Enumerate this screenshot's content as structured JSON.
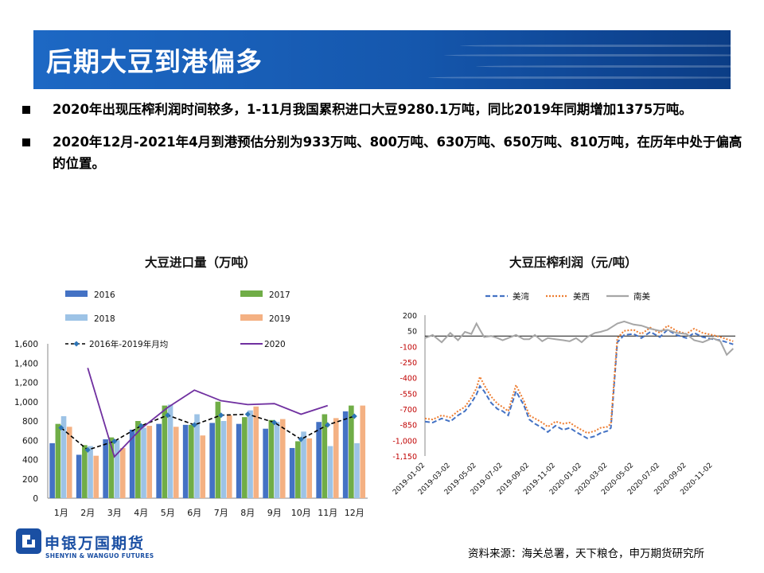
{
  "title": "后期大豆到港偏多",
  "bullets": [
    "2020年出现压榨利润时间较多，1-11月我国累积进口大豆9280.1万吨，同比2019年同期增加1375万吨。",
    "2020年12月-2021年4月到港预估分别为933万吨、800万吨、630万吨、650万吨、810万吨，在历年中处于偏高的位置。"
  ],
  "source": "资料来源：海关总署，天下粮仓，申万期货研究所",
  "logo": {
    "cn": "申银万国期货",
    "en": "SHENYIN & WANGUO FUTURES"
  },
  "colors": {
    "title_bar": "#1557ad",
    "logo_blue": "#1a4fa3"
  },
  "chart_data": [
    {
      "type": "bar",
      "title": "大豆进口量（万吨）",
      "categories": [
        "1月",
        "2月",
        "3月",
        "4月",
        "5月",
        "6月",
        "7月",
        "8月",
        "9月",
        "10月",
        "11月",
        "12月"
      ],
      "ylim": [
        0,
        1600
      ],
      "yticks": [
        "0",
        "200",
        "400",
        "600",
        "800",
        "1,000",
        "1,200",
        "1,400",
        "1,600"
      ],
      "legend_position": "top",
      "series": [
        {
          "name": "2016",
          "kind": "bar",
          "color": "#4472c4",
          "values": [
            570,
            450,
            610,
            710,
            770,
            760,
            780,
            770,
            720,
            520,
            790,
            900
          ]
        },
        {
          "name": "2017",
          "kind": "bar",
          "color": "#70ad47",
          "values": [
            770,
            550,
            630,
            800,
            960,
            760,
            1000,
            840,
            810,
            590,
            870,
            960
          ]
        },
        {
          "name": "2018",
          "kind": "bar",
          "color": "#9dc3e6",
          "values": [
            850,
            540,
            600,
            730,
            970,
            870,
            800,
            910,
            790,
            690,
            540,
            570
          ]
        },
        {
          "name": "2019",
          "kind": "bar",
          "color": "#f4b183",
          "values": [
            740,
            440,
            520,
            750,
            740,
            650,
            860,
            950,
            820,
            620,
            830,
            960
          ]
        },
        {
          "name": "2016年-2019年月均",
          "kind": "line-dashed",
          "color": "#000000",
          "values": [
            730,
            500,
            590,
            750,
            860,
            760,
            860,
            870,
            785,
            610,
            760,
            850
          ]
        },
        {
          "name": "2020",
          "kind": "line",
          "color": "#7030a0",
          "values": [
            null,
            1350,
            430,
            720,
            940,
            1120,
            1010,
            970,
            980,
            870,
            960,
            null
          ]
        }
      ]
    },
    {
      "type": "line",
      "title": "大豆压榨利润（元/吨）",
      "ylim": [
        -1150,
        200
      ],
      "yticks": [
        "200",
        "50",
        "-100",
        "-250",
        "-400",
        "-550",
        "-700",
        "-850",
        "-1,000",
        "-1,150"
      ],
      "xticks": [
        "2019-01-02",
        "2019-03-02",
        "2019-05-02",
        "2019-07-02",
        "2019-09-02",
        "2019-11-02",
        "2020-01-02",
        "2020-03-02",
        "2020-05-02",
        "2020-07-02",
        "2020-09-02",
        "2020-11-02"
      ],
      "legend_position": "top",
      "series": [
        {
          "name": "美湾",
          "style": "dashed",
          "color": "#4472c4",
          "x": [
            "2019-01-02",
            "2019-01-20",
            "2019-02-10",
            "2019-03-02",
            "2019-03-20",
            "2019-04-05",
            "2019-04-20",
            "2019-05-02",
            "2019-05-10",
            "2019-05-20",
            "2019-06-05",
            "2019-06-20",
            "2019-07-02",
            "2019-07-15",
            "2019-08-02",
            "2019-08-20",
            "2019-09-02",
            "2019-09-15",
            "2019-10-02",
            "2019-10-15",
            "2019-11-02",
            "2019-11-20",
            "2019-12-05",
            "2019-12-20",
            "2020-01-02",
            "2020-01-15",
            "2020-02-02",
            "2020-02-15",
            "2020-03-02",
            "2020-03-10",
            "2020-03-25",
            "2020-04-10",
            "2020-05-02",
            "2020-05-20",
            "2020-06-10",
            "2020-07-02",
            "2020-07-20",
            "2020-08-10",
            "2020-09-02",
            "2020-09-20",
            "2020-10-10",
            "2020-11-02",
            "2020-11-20",
            "2020-12-05",
            "2020-12-20"
          ],
          "y": [
            -820,
            -830,
            -790,
            -820,
            -760,
            -720,
            -640,
            -560,
            -480,
            -530,
            -640,
            -700,
            -720,
            -760,
            -530,
            -660,
            -800,
            -840,
            -880,
            -920,
            -860,
            -900,
            -880,
            -920,
            -950,
            -980,
            -960,
            -930,
            -910,
            -880,
            -60,
            10,
            20,
            -20,
            40,
            -10,
            60,
            10,
            -20,
            30,
            -10,
            -30,
            -40,
            -60,
            -80
          ]
        },
        {
          "name": "美西",
          "style": "dotted",
          "color": "#ed7d31",
          "x": [
            "2019-01-02",
            "2019-01-20",
            "2019-02-10",
            "2019-03-02",
            "2019-03-20",
            "2019-04-05",
            "2019-04-20",
            "2019-05-02",
            "2019-05-10",
            "2019-05-20",
            "2019-06-05",
            "2019-06-20",
            "2019-07-02",
            "2019-07-15",
            "2019-08-02",
            "2019-08-20",
            "2019-09-02",
            "2019-09-15",
            "2019-10-02",
            "2019-10-15",
            "2019-11-02",
            "2019-11-20",
            "2019-12-05",
            "2019-12-20",
            "2020-01-02",
            "2020-01-15",
            "2020-02-02",
            "2020-02-15",
            "2020-03-02",
            "2020-03-10",
            "2020-03-25",
            "2020-04-10",
            "2020-05-02",
            "2020-05-20",
            "2020-06-10",
            "2020-07-02",
            "2020-07-20",
            "2020-08-10",
            "2020-09-02",
            "2020-09-20",
            "2020-10-10",
            "2020-11-02",
            "2020-11-20",
            "2020-12-05",
            "2020-12-20"
          ],
          "y": [
            -790,
            -800,
            -760,
            -780,
            -720,
            -680,
            -590,
            -500,
            -390,
            -470,
            -580,
            -650,
            -680,
            -720,
            -470,
            -620,
            -760,
            -790,
            -830,
            -870,
            -820,
            -840,
            -830,
            -870,
            -900,
            -930,
            -910,
            -880,
            -870,
            -840,
            -20,
            50,
            60,
            20,
            80,
            30,
            100,
            50,
            20,
            70,
            30,
            10,
            -10,
            -30,
            -50
          ]
        },
        {
          "name": "南美",
          "style": "solid",
          "color": "#a6a6a6",
          "x": [
            "2019-01-02",
            "2019-01-20",
            "2019-02-10",
            "2019-03-02",
            "2019-03-20",
            "2019-04-05",
            "2019-04-20",
            "2019-05-02",
            "2019-05-10",
            "2019-05-20",
            "2019-06-05",
            "2019-06-20",
            "2019-07-02",
            "2019-07-15",
            "2019-08-02",
            "2019-08-20",
            "2019-09-02",
            "2019-09-15",
            "2019-10-02",
            "2019-10-15",
            "2019-11-02",
            "2019-11-20",
            "2019-12-05",
            "2019-12-20",
            "2020-01-02",
            "2020-01-15",
            "2020-02-02",
            "2020-02-15",
            "2020-03-02",
            "2020-03-10",
            "2020-03-25",
            "2020-04-10",
            "2020-05-02",
            "2020-05-20",
            "2020-06-10",
            "2020-07-02",
            "2020-07-20",
            "2020-08-10",
            "2020-09-02",
            "2020-09-20",
            "2020-10-10",
            "2020-11-02",
            "2020-11-20",
            "2020-12-05",
            "2020-12-20"
          ],
          "y": [
            -20,
            10,
            -60,
            30,
            -40,
            40,
            20,
            120,
            60,
            -10,
            0,
            -20,
            -40,
            -20,
            10,
            -30,
            -30,
            10,
            -50,
            -20,
            -30,
            -40,
            -50,
            -20,
            -60,
            -10,
            30,
            40,
            60,
            80,
            120,
            140,
            110,
            100,
            70,
            50,
            60,
            30,
            20,
            -40,
            -60,
            -20,
            -50,
            -180,
            -120
          ]
        }
      ]
    }
  ]
}
